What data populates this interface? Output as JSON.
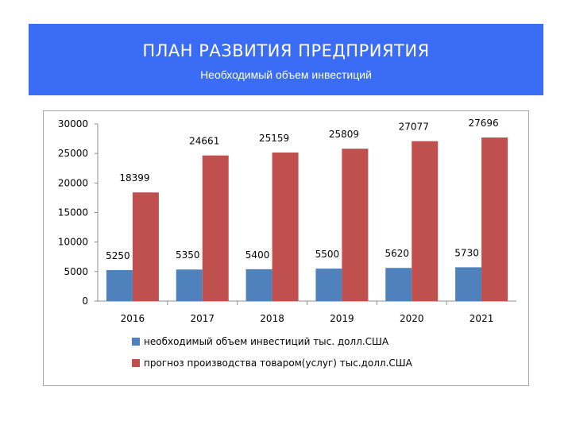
{
  "header": {
    "title": "ПЛАН РАЗВИТИЯ ПРЕДПРИЯТИЯ",
    "subtitle": "Необходимый объем инвестиций",
    "bg_color": "#3a6cf6"
  },
  "chart_data": {
    "type": "bar",
    "categories": [
      "2016",
      "2017",
      "2018",
      "2019",
      "2020",
      "2021"
    ],
    "series": [
      {
        "name": "необходимый объем инвестиций  тыс. долл.США",
        "color": "#4f81bd",
        "values": [
          5250,
          5350,
          5400,
          5500,
          5620,
          5730
        ]
      },
      {
        "name": "прогноз производства товаром(услуг) тыс.долл.США",
        "color": "#c0504d",
        "values": [
          18399,
          24661,
          25159,
          25809,
          27077,
          27696
        ]
      }
    ],
    "ylim": [
      0,
      30000
    ],
    "yticks": [
      "0",
      "5000",
      "10000",
      "15000",
      "20000",
      "25000",
      "30000"
    ],
    "grid": false,
    "legend": "bottom",
    "data_labels": true
  }
}
